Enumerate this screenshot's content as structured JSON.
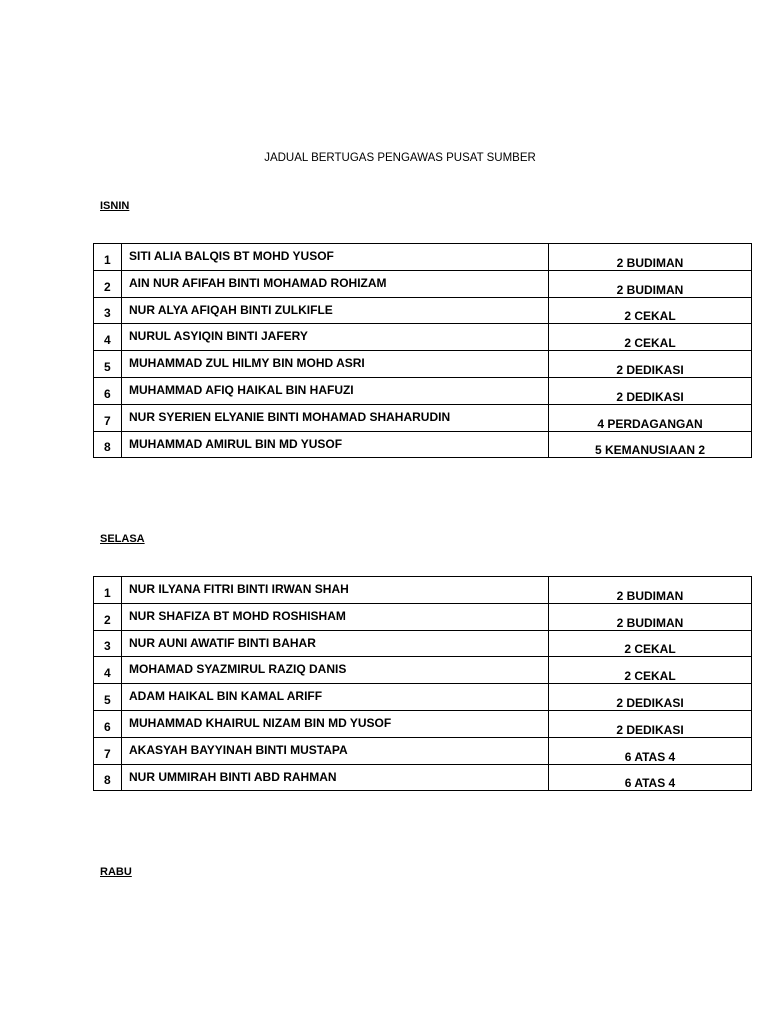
{
  "title": "JADUAL BERTUGAS PENGAWAS PUSAT SUMBER",
  "sections": [
    {
      "heading": "ISNIN",
      "rows": [
        [
          "1",
          "SITI ALIA BALQIS BT MOHD YUSOF",
          "2 BUDIMAN"
        ],
        [
          "2",
          "AIN NUR AFIFAH BINTI MOHAMAD ROHIZAM",
          "2 BUDIMAN"
        ],
        [
          "3",
          "NUR ALYA AFIQAH BINTI ZULKIFLE",
          "2 CEKAL"
        ],
        [
          "4",
          "NURUL ASYIQIN BINTI JAFERY",
          "2 CEKAL"
        ],
        [
          "5",
          "MUHAMMAD ZUL HILMY BIN MOHD ASRI",
          "2 DEDIKASI"
        ],
        [
          "6",
          "MUHAMMAD AFIQ HAIKAL BIN HAFUZI",
          "2 DEDIKASI"
        ],
        [
          "7",
          "NUR SYERIEN ELYANIE BINTI MOHAMAD SHAHARUDIN",
          "4 PERDAGANGAN"
        ],
        [
          "8",
          "MUHAMMAD AMIRUL BIN MD YUSOF",
          "5 KEMANUSIAAN 2"
        ]
      ]
    },
    {
      "heading": "SELASA",
      "rows": [
        [
          "1",
          "NUR ILYANA FITRI BINTI IRWAN SHAH",
          "2 BUDIMAN"
        ],
        [
          "2",
          "NUR SHAFIZA BT MOHD ROSHISHAM",
          "2 BUDIMAN"
        ],
        [
          "3",
          "NUR AUNI AWATIF BINTI BAHAR",
          "2 CEKAL"
        ],
        [
          "4",
          "MOHAMAD SYAZMIRUL RAZIQ DANIS",
          "2 CEKAL"
        ],
        [
          "5",
          "ADAM HAIKAL BIN KAMAL ARIFF",
          "2 DEDIKASI"
        ],
        [
          "6",
          "MUHAMMAD KHAIRUL NIZAM BIN MD YUSOF",
          "2 DEDIKASI"
        ],
        [
          "7",
          "AKASYAH BAYYINAH BINTI MUSTAPA",
          "6 ATAS 4"
        ],
        [
          "8",
          "NUR UMMIRAH BINTI ABD RAHMAN",
          "6 ATAS 4"
        ]
      ]
    },
    {
      "heading": "RABU",
      "rows": []
    }
  ]
}
